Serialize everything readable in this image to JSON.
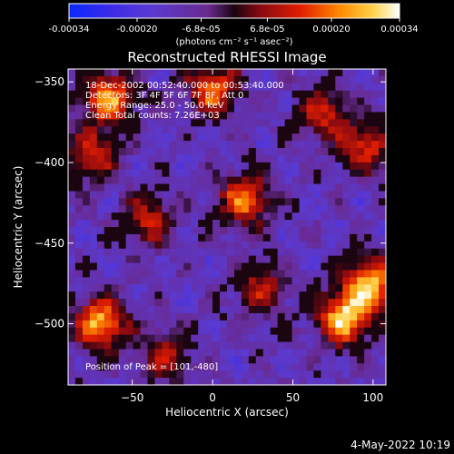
{
  "chart_data": {
    "type": "heatmap",
    "title": "Reconstructed RHESSI Image",
    "xlabel": "Heliocentric X (arcsec)",
    "ylabel": "Heliocentric Y (arcsec)",
    "xlim": [
      -90,
      108
    ],
    "ylim": [
      -538,
      -342
    ],
    "x_ticks": [
      -50,
      0,
      50,
      100
    ],
    "y_ticks": [
      -350,
      -400,
      -450,
      -500
    ],
    "colorbar": {
      "min": -0.00034,
      "max": 0.00034,
      "tick_values": [
        -0.00034,
        -0.0002,
        -6.8e-05,
        6.8e-05,
        0.0002,
        0.00034
      ],
      "tick_labels": [
        "-0.00034",
        "-0.00020",
        "-6.8e-05",
        "6.8e-05",
        "0.00020",
        "0.00034"
      ],
      "units": "(photons cm⁻² s⁻¹ asec⁻²)",
      "colormap": "blue-purple-red-yellow-white"
    },
    "annotations": [
      "18-Dec-2002 00:52:40.000 to 00:53:40.000",
      "Detectors: 3F 4F 5F 6F 7F 8F, Att 0",
      "Energy Range: 25.0 - 50.0 keV",
      "Clean     Total counts: 7.26E+03"
    ],
    "peak_text": "Position of Peak = [101,-480]",
    "peak_position": [
      101,
      -480
    ],
    "hotspots": [
      {
        "x": -70,
        "y": -500,
        "intensity": 0.9
      },
      {
        "x": -65,
        "y": -360,
        "intensity": 0.85
      },
      {
        "x": 0,
        "y": -355,
        "intensity": 0.75
      },
      {
        "x": 82,
        "y": -497,
        "intensity": 1.0
      },
      {
        "x": 98,
        "y": -475,
        "intensity": 0.95
      },
      {
        "x": 95,
        "y": -390,
        "intensity": 0.6
      },
      {
        "x": 20,
        "y": -423,
        "intensity": 0.75
      },
      {
        "x": -40,
        "y": -436,
        "intensity": 0.55
      },
      {
        "x": 30,
        "y": -478,
        "intensity": 0.5
      },
      {
        "x": -75,
        "y": -395,
        "intensity": 0.6
      },
      {
        "x": 70,
        "y": -370,
        "intensity": 0.55
      },
      {
        "x": -30,
        "y": -520,
        "intensity": 0.5
      }
    ]
  },
  "footer_timestamp": "4-May-2022 10:19"
}
